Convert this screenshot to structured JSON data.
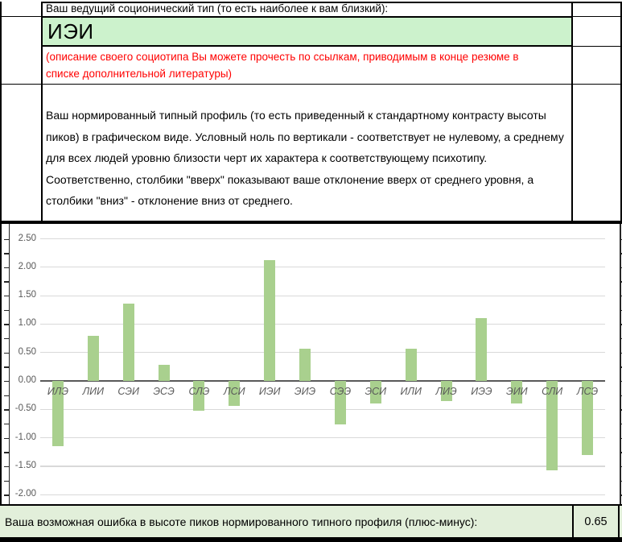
{
  "sheet": {
    "header_label": "Ваш ведущий соционический тип (то есть наиболее к вам близкий):",
    "leading_type": "ИЭИ",
    "red_note": "(описание своего социотипа Вы можете прочесть по ссылкам, приводимым в конце резюме в списке дополнительной литературы)",
    "profile_description": "Ваш нормированный типный профиль (то есть приведенный к стандартному контрасту высоты пиков) в графическом виде. Условный ноль по вертикали - соответствует не нулевому, а среднему для всех людей уровню близости черт их характера к соответствующему психотипу. Соответственно, столбики \"вверх\" показывают ваше отклонение вверх от среднего уровня, а столбики \"вниз\" - отклонение вниз от среднего.",
    "error_label": "Ваша возможная ошибка в высоте пиков нормированного типного профиля (плюс-минус):",
    "error_value": "0.65"
  },
  "colors": {
    "type_cell_bg": "#ccf2cc",
    "footer_row_bg": "#e2efda",
    "bar_fill": "#a9d08e",
    "gridline": "#d9d9d9",
    "axis_text": "#595959",
    "zero_line": "#595959",
    "note_text": "#ff0000"
  },
  "chart_data": {
    "type": "bar",
    "categories": [
      "ИЛЭ",
      "ЛИИ",
      "СЭИ",
      "ЭСЭ",
      "СЛЭ",
      "ЛСИ",
      "ИЭИ",
      "ЭИЭ",
      "СЭЭ",
      "ЭСИ",
      "ИЛИ",
      "ЛИЭ",
      "ИЭЭ",
      "ЭИИ",
      "СЛИ",
      "ЛСЭ"
    ],
    "values": [
      -1.15,
      0.8,
      1.36,
      0.29,
      -0.53,
      -0.44,
      2.13,
      0.56,
      -0.77,
      -0.39,
      0.56,
      -0.35,
      1.1,
      -0.39,
      -1.57,
      -1.3
    ],
    "title": "",
    "xlabel": "",
    "ylabel": "",
    "y_ticks": [
      2.5,
      2.0,
      1.5,
      1.0,
      0.5,
      0.0,
      -0.5,
      -1.0,
      -1.5,
      -2.0
    ],
    "y_minor_tick_step": 0.25,
    "ylim": [
      -2.2,
      2.75
    ],
    "grid": true,
    "legend": false
  }
}
